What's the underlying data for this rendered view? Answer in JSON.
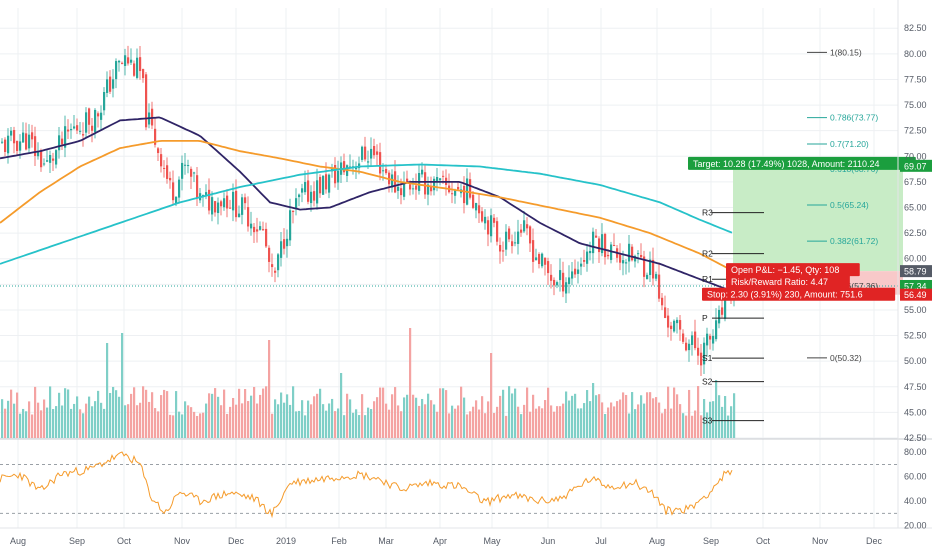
{
  "colors": {
    "background": "#ffffff",
    "grid": "#eef0f3",
    "candle_up": "#26a69a",
    "candle_down": "#ef5350",
    "volume_up": "#7fcfc7",
    "volume_down": "#f4a3a2",
    "ma_short": "#2f2466",
    "ma_mid": "#f59b2b",
    "ma_long": "#26c2c9",
    "rsi_line": "#f59b2b",
    "rsi_band": "#9aa0a6",
    "target_zone": "#c8ecc6",
    "stop_zone": "#f8c9c9",
    "target_label_bg": "#1b9e3e",
    "stop_label_bg": "#e02424",
    "price_tag_current": "#555b66",
    "price_tag_green": "#1b9e3e",
    "price_tag_red": "#e02424",
    "fib_color": "#26a69a",
    "fib_gray": "#444444"
  },
  "chart_data": [
    {
      "type": "candlestick",
      "panel": "price",
      "x_tick_labels": [
        "Aug",
        "Sep",
        "Oct",
        "Nov",
        "Dec",
        "2019",
        "Feb",
        "Mar",
        "Apr",
        "May",
        "Jun",
        "Jul",
        "Aug",
        "Sep",
        "Oct",
        "Nov",
        "Dec"
      ],
      "y_tick_labels": [
        "82.50",
        "80.00",
        "77.50",
        "75.00",
        "72.50",
        "70.00",
        "67.50",
        "65.00",
        "62.50",
        "60.00",
        "57.50",
        "55.00",
        "52.50",
        "50.00",
        "47.50",
        "45.00",
        "42.50"
      ],
      "ylim": [
        42.5,
        83.5
      ],
      "approx_close_path": [
        {
          "x": 0,
          "y": 71.0
        },
        {
          "x": 25,
          "y": 71.8
        },
        {
          "x": 45,
          "y": 69.0
        },
        {
          "x": 70,
          "y": 72.5
        },
        {
          "x": 95,
          "y": 74.0
        },
        {
          "x": 115,
          "y": 78.5
        },
        {
          "x": 125,
          "y": 79.5
        },
        {
          "x": 140,
          "y": 78.0
        },
        {
          "x": 145,
          "y": 74.0
        },
        {
          "x": 160,
          "y": 70.0
        },
        {
          "x": 170,
          "y": 66.5
        },
        {
          "x": 185,
          "y": 69.0
        },
        {
          "x": 200,
          "y": 65.5
        },
        {
          "x": 225,
          "y": 66.0
        },
        {
          "x": 245,
          "y": 64.5
        },
        {
          "x": 262,
          "y": 62.5
        },
        {
          "x": 272,
          "y": 57.5
        },
        {
          "x": 285,
          "y": 63.0
        },
        {
          "x": 300,
          "y": 66.0
        },
        {
          "x": 325,
          "y": 67.5
        },
        {
          "x": 345,
          "y": 69.0
        },
        {
          "x": 370,
          "y": 70.5
        },
        {
          "x": 395,
          "y": 67.0
        },
        {
          "x": 420,
          "y": 67.5
        },
        {
          "x": 440,
          "y": 67.0
        },
        {
          "x": 470,
          "y": 66.5
        },
        {
          "x": 485,
          "y": 64.0
        },
        {
          "x": 500,
          "y": 61.5
        },
        {
          "x": 520,
          "y": 63.0
        },
        {
          "x": 540,
          "y": 59.5
        },
        {
          "x": 556,
          "y": 57.5
        },
        {
          "x": 575,
          "y": 59.0
        },
        {
          "x": 595,
          "y": 62.0
        },
        {
          "x": 615,
          "y": 60.5
        },
        {
          "x": 635,
          "y": 60.0
        },
        {
          "x": 652,
          "y": 59.0
        },
        {
          "x": 662,
          "y": 54.5
        },
        {
          "x": 680,
          "y": 52.5
        },
        {
          "x": 700,
          "y": 50.8
        },
        {
          "x": 715,
          "y": 53.0
        },
        {
          "x": 725,
          "y": 56.0
        },
        {
          "x": 733,
          "y": 57.4
        }
      ],
      "series": [
        {
          "name": "",
          "kind": "moving_average_short",
          "approx_path": [
            {
              "x": 0,
              "y": 69.8
            },
            {
              "x": 40,
              "y": 70.5
            },
            {
              "x": 80,
              "y": 71.5
            },
            {
              "x": 120,
              "y": 73.5
            },
            {
              "x": 160,
              "y": 73.8
            },
            {
              "x": 200,
              "y": 72.0
            },
            {
              "x": 240,
              "y": 68.5
            },
            {
              "x": 270,
              "y": 65.5
            },
            {
              "x": 300,
              "y": 64.8
            },
            {
              "x": 330,
              "y": 65.0
            },
            {
              "x": 370,
              "y": 66.5
            },
            {
              "x": 410,
              "y": 67.5
            },
            {
              "x": 460,
              "y": 67.5
            },
            {
              "x": 500,
              "y": 66.0
            },
            {
              "x": 540,
              "y": 63.5
            },
            {
              "x": 580,
              "y": 61.5
            },
            {
              "x": 620,
              "y": 60.5
            },
            {
              "x": 660,
              "y": 59.5
            },
            {
              "x": 700,
              "y": 58.0
            },
            {
              "x": 733,
              "y": 56.8
            }
          ]
        },
        {
          "name": "",
          "kind": "moving_average_mid",
          "approx_path": [
            {
              "x": 0,
              "y": 63.5
            },
            {
              "x": 40,
              "y": 66.5
            },
            {
              "x": 80,
              "y": 69.0
            },
            {
              "x": 120,
              "y": 70.8
            },
            {
              "x": 160,
              "y": 71.5
            },
            {
              "x": 200,
              "y": 71.5
            },
            {
              "x": 240,
              "y": 70.5
            },
            {
              "x": 280,
              "y": 69.8
            },
            {
              "x": 320,
              "y": 69.0
            },
            {
              "x": 360,
              "y": 68.5
            },
            {
              "x": 400,
              "y": 67.5
            },
            {
              "x": 450,
              "y": 66.8
            },
            {
              "x": 500,
              "y": 66.0
            },
            {
              "x": 550,
              "y": 65.0
            },
            {
              "x": 600,
              "y": 64.0
            },
            {
              "x": 650,
              "y": 62.5
            },
            {
              "x": 700,
              "y": 60.5
            },
            {
              "x": 733,
              "y": 58.8
            }
          ]
        },
        {
          "name": "",
          "kind": "moving_average_long",
          "approx_path": [
            {
              "x": 0,
              "y": 59.5
            },
            {
              "x": 60,
              "y": 61.5
            },
            {
              "x": 120,
              "y": 63.5
            },
            {
              "x": 180,
              "y": 65.5
            },
            {
              "x": 240,
              "y": 67.0
            },
            {
              "x": 300,
              "y": 68.2
            },
            {
              "x": 360,
              "y": 69.0
            },
            {
              "x": 420,
              "y": 69.2
            },
            {
              "x": 480,
              "y": 69.0
            },
            {
              "x": 540,
              "y": 68.3
            },
            {
              "x": 600,
              "y": 67.2
            },
            {
              "x": 660,
              "y": 65.5
            },
            {
              "x": 700,
              "y": 63.8
            },
            {
              "x": 733,
              "y": 62.5
            }
          ]
        }
      ],
      "fibonacci_levels": [
        {
          "label": "1(80.15)",
          "value": 80.15,
          "tone": "gray"
        },
        {
          "label": "0.786(73.77)",
          "value": 73.77,
          "tone": "teal"
        },
        {
          "label": "0.7(71.20)",
          "value": 71.2,
          "tone": "teal"
        },
        {
          "label": "0.618(68.76)",
          "value": 68.76,
          "tone": "teal"
        },
        {
          "label": "0.5(65.24)",
          "value": 65.24,
          "tone": "teal"
        },
        {
          "label": "0.382(61.72)",
          "value": 61.72,
          "tone": "teal"
        },
        {
          "label": "0.236(57.36)",
          "value": 57.36,
          "tone": "gray"
        },
        {
          "label": "0(50.32)",
          "value": 50.32,
          "tone": "gray"
        }
      ],
      "pivot_levels": [
        {
          "label": "R3",
          "value": 64.5
        },
        {
          "label": "R2",
          "value": 60.5
        },
        {
          "label": "R1",
          "value": 58.0
        },
        {
          "label": "P",
          "value": 54.2
        },
        {
          "label": "S1",
          "value": 50.3
        },
        {
          "label": "S2",
          "value": 48.0
        },
        {
          "label": "S3",
          "value": 44.2
        }
      ],
      "reference_line": 57.34,
      "position": {
        "entry": 58.79,
        "target_price": 69.07,
        "stop_price": 56.49,
        "target_label": "Target: 10.28 (17.49%) 1028, Amount: 2110.24",
        "stop_label": "Stop: 2.30 (3.91%) 230, Amount: 751.6",
        "open_pl_label": "Open P&L: −1.45, Qty: 108",
        "risk_reward_label": "Risk/Reward Ratio: 4.47"
      },
      "price_tags": [
        {
          "text": "69.07",
          "value": 69.07,
          "tone": "green"
        },
        {
          "text": "58.79",
          "value": 58.79,
          "tone": "current"
        },
        {
          "text": "57.34",
          "value": 57.34,
          "tone": "green"
        },
        {
          "text": "56.49",
          "value": 56.49,
          "tone": "red"
        }
      ]
    },
    {
      "type": "bar",
      "panel": "volume",
      "title": "",
      "note": "relative volume bars, no axis printed"
    },
    {
      "type": "line",
      "panel": "rsi",
      "y_tick_labels": [
        "80.00",
        "60.00",
        "40.00",
        "20.00"
      ],
      "ylim": [
        18,
        90
      ],
      "bands": [
        70,
        30
      ],
      "approx_path": [
        {
          "x": 0,
          "y": 58
        },
        {
          "x": 20,
          "y": 62
        },
        {
          "x": 40,
          "y": 48
        },
        {
          "x": 60,
          "y": 62
        },
        {
          "x": 90,
          "y": 66
        },
        {
          "x": 115,
          "y": 76
        },
        {
          "x": 125,
          "y": 78
        },
        {
          "x": 140,
          "y": 70
        },
        {
          "x": 150,
          "y": 45
        },
        {
          "x": 165,
          "y": 30
        },
        {
          "x": 180,
          "y": 48
        },
        {
          "x": 200,
          "y": 40
        },
        {
          "x": 230,
          "y": 47
        },
        {
          "x": 255,
          "y": 42
        },
        {
          "x": 272,
          "y": 29
        },
        {
          "x": 290,
          "y": 55
        },
        {
          "x": 310,
          "y": 57
        },
        {
          "x": 335,
          "y": 60
        },
        {
          "x": 360,
          "y": 62
        },
        {
          "x": 380,
          "y": 58
        },
        {
          "x": 400,
          "y": 50
        },
        {
          "x": 430,
          "y": 55
        },
        {
          "x": 460,
          "y": 52
        },
        {
          "x": 485,
          "y": 39
        },
        {
          "x": 510,
          "y": 45
        },
        {
          "x": 540,
          "y": 40
        },
        {
          "x": 560,
          "y": 42
        },
        {
          "x": 590,
          "y": 58
        },
        {
          "x": 610,
          "y": 52
        },
        {
          "x": 635,
          "y": 55
        },
        {
          "x": 655,
          "y": 45
        },
        {
          "x": 665,
          "y": 32
        },
        {
          "x": 690,
          "y": 34
        },
        {
          "x": 710,
          "y": 48
        },
        {
          "x": 725,
          "y": 62
        },
        {
          "x": 733,
          "y": 63
        }
      ]
    }
  ]
}
